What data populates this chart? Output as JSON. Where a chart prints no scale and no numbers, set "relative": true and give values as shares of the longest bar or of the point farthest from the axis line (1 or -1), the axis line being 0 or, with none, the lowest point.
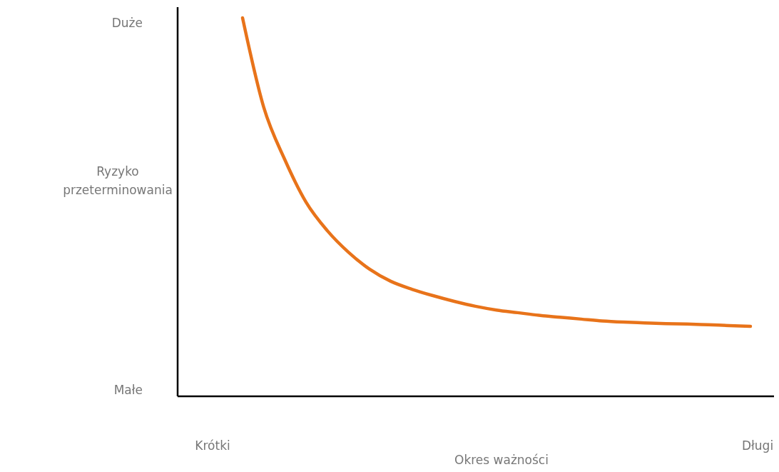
{
  "chart_data": {
    "type": "line",
    "relative": true,
    "xlabel": "Okres ważności",
    "ylabel": "Ryzyko przeterminowania",
    "categories": [
      null,
      null,
      null,
      null,
      null,
      null,
      null,
      null,
      null,
      null,
      null,
      null,
      null,
      null,
      null,
      null,
      null,
      null,
      null,
      null,
      null,
      null,
      null,
      null,
      null
    ],
    "series": [
      {
        "color": "#e8731a",
        "values": [
          1,
          0.764,
          0.625,
          0.513,
          0.438,
          0.381,
          0.336,
          0.304,
          0.283,
          0.266,
          0.251,
          0.238,
          0.228,
          0.221,
          0.214,
          0.209,
          0.204,
          0.199,
          0.196,
          0.194,
          0.192,
          0.191,
          0.189,
          0.187,
          0.185
        ]
      }
    ],
    "annotations": [
      "Duże",
      "Małe",
      "Krótki",
      "Długi"
    ],
    "marker": "none",
    "line_style": "solid"
  }
}
